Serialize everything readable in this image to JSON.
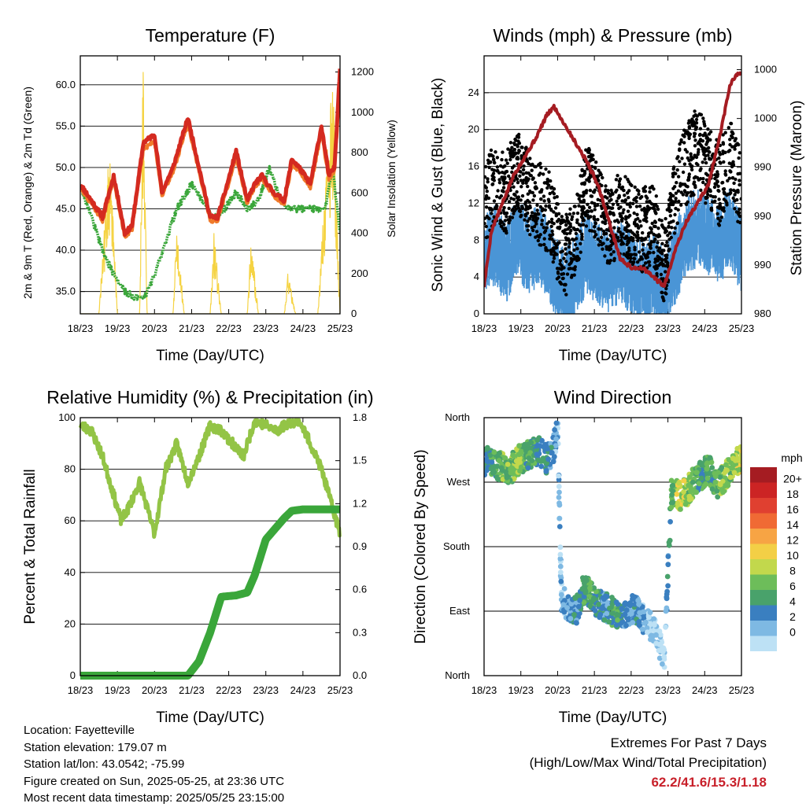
{
  "colors": {
    "temp_2m": "#d42a20",
    "temp_9m": "#f07a2a",
    "dewpoint": "#3aa63a",
    "solar": "#f5d343",
    "wind": "#4a95d6",
    "gust": "#000000",
    "pressure": "#a51c22",
    "rh": "#93c446",
    "precip": "#3aa63a",
    "extremes": "#c8202a"
  },
  "x_ticks": [
    "18/23",
    "19/23",
    "20/23",
    "21/23",
    "22/23",
    "23/23",
    "24/23",
    "25/23"
  ],
  "panels": {
    "temperature": {
      "title": "Temperature (F)",
      "xlabel": "Time (Day/UTC)",
      "ylabel_left": "2m & 9m T (Red, Orange) & 2m Td (Green)",
      "ylabel_right": "Solar Insolation (Yellow)"
    },
    "winds": {
      "title": "Winds (mph) & Pressure (mb)",
      "xlabel": "Time (Day/UTC)",
      "ylabel_left": "Sonic Wind & Gust (Blue, Black)",
      "ylabel_right": "Station Pressure (Maroon)"
    },
    "humidity": {
      "title": "Relative Humidity (%) & Precipitation (in)",
      "xlabel": "Time (Day/UTC)",
      "ylabel_left": "Percent & Total Rainfall"
    },
    "direction": {
      "title": "Wind Direction",
      "xlabel": "Time (Day/UTC)",
      "ylabel_left": "Direction (Colored By Speed)"
    }
  },
  "legend": {
    "unit": "mph",
    "labels": [
      "20+",
      "18",
      "16",
      "14",
      "12",
      "10",
      "8",
      "6",
      "4",
      "2",
      "0"
    ],
    "colors": [
      "#a51c22",
      "#cc2424",
      "#e04030",
      "#f06a34",
      "#f7a444",
      "#f3cf46",
      "#c2d84c",
      "#6dbd5a",
      "#49a26b",
      "#3a7fc0",
      "#7eb9e3",
      "#bde1f5"
    ]
  },
  "info": {
    "location": "Location: Fayetteville",
    "elevation": "Station elevation: 179.07 m",
    "latlon": "Station lat/lon: 43.0542; -75.99",
    "created": "Figure created on Sun, 2025-05-25, at 23:36 UTC",
    "recent": "Most recent data timestamp: 2025/05/25 23:15:00"
  },
  "extremes": {
    "heading": "Extremes For Past 7 Days",
    "subheading": "(High/Low/Max Wind/Total Precipitation)",
    "values": "62.2/41.6/15.3/1.18"
  },
  "chart_data": [
    {
      "type": "line",
      "title": "Temperature (F)",
      "xlabel": "Time (Day/UTC)",
      "ylabel": "2m & 9m T (Red, Orange) & 2m Td (Green)",
      "ylabel_right": "Solar Insolation (Yellow)",
      "x_ticks": [
        "18/23",
        "19/23",
        "20/23",
        "21/23",
        "22/23",
        "23/23",
        "24/23",
        "25/23"
      ],
      "xlim": [
        0,
        7
      ],
      "ylim": [
        32.3,
        63.5
      ],
      "y_ticks": [
        35.0,
        40.0,
        45.0,
        50.0,
        55.0,
        60.0
      ],
      "y2lim": [
        0,
        1280
      ],
      "y2_ticks": [
        0,
        200,
        400,
        600,
        800,
        1000,
        1200
      ],
      "grid": true,
      "series": [
        {
          "name": "2m T",
          "axis": "left",
          "x": [
            0,
            0.3,
            0.6,
            0.9,
            1.2,
            1.4,
            1.7,
            2.0,
            2.2,
            2.5,
            2.9,
            3.2,
            3.5,
            3.7,
            3.9,
            4.2,
            4.5,
            4.7,
            4.9,
            5.2,
            5.5,
            5.7,
            5.9,
            6.2,
            6.5,
            6.7,
            6.85,
            7.0
          ],
          "values": [
            48.0,
            46.0,
            44.0,
            49.0,
            42.0,
            43.0,
            53.0,
            54.0,
            47.0,
            50.0,
            56.0,
            50.0,
            44.0,
            44.0,
            47.0,
            52.0,
            46.0,
            48.0,
            49.0,
            47.0,
            46.0,
            51.0,
            50.0,
            48.0,
            55.0,
            49.0,
            50.0,
            62.0
          ]
        },
        {
          "name": "9m T",
          "axis": "left",
          "x": [
            0,
            0.3,
            0.6,
            0.9,
            1.2,
            1.4,
            1.7,
            2.0,
            2.2,
            2.5,
            2.9,
            3.2,
            3.5,
            3.7,
            3.9,
            4.2,
            4.5,
            4.7,
            4.9,
            5.2,
            5.5,
            5.7,
            5.9,
            6.2,
            6.5,
            6.7,
            6.85,
            7.0
          ],
          "values": [
            47.6,
            45.6,
            43.6,
            48.4,
            41.6,
            42.6,
            52.2,
            53.2,
            46.6,
            49.5,
            55.2,
            49.6,
            43.6,
            43.6,
            46.6,
            51.2,
            45.6,
            47.6,
            48.6,
            46.6,
            45.6,
            50.4,
            49.6,
            47.6,
            54.2,
            48.6,
            49.6,
            60.0
          ]
        },
        {
          "name": "2m Td",
          "axis": "left",
          "x": [
            0,
            0.3,
            0.6,
            0.9,
            1.2,
            1.4,
            1.7,
            2.0,
            2.3,
            2.6,
            3.0,
            3.3,
            3.6,
            3.9,
            4.2,
            4.5,
            4.8,
            5.1,
            5.4,
            5.7,
            6.0,
            6.3,
            6.6,
            6.8,
            7.0
          ],
          "values": [
            48.0,
            44.0,
            40.0,
            37.0,
            35.0,
            34.5,
            34.0,
            37.0,
            41.0,
            45.0,
            48.0,
            46.0,
            44.0,
            45.0,
            47.0,
            45.0,
            46.0,
            50.0,
            46.0,
            45.0,
            45.0,
            45.0,
            45.0,
            50.0,
            42.0
          ]
        },
        {
          "name": "Solar Insolation",
          "axis": "right",
          "x": [
            0,
            0.5,
            0.8,
            1.0,
            1.3,
            1.6,
            1.7,
            1.8,
            2.0,
            2.5,
            2.6,
            2.8,
            3.0,
            3.5,
            3.6,
            3.8,
            4.0,
            4.5,
            4.6,
            4.8,
            5.0,
            5.5,
            5.6,
            5.8,
            6.0,
            6.4,
            6.6,
            6.8,
            7.0
          ],
          "values": [
            0,
            0,
            800,
            0,
            0,
            0,
            1250,
            0,
            0,
            0,
            420,
            0,
            0,
            0,
            380,
            0,
            0,
            0,
            350,
            0,
            0,
            0,
            200,
            0,
            0,
            0,
            600,
            1100,
            0
          ]
        }
      ]
    },
    {
      "type": "line",
      "title": "Winds (mph) & Pressure (mb)",
      "xlabel": "Time (Day/UTC)",
      "ylabel": "Sonic Wind & Gust (Blue, Black)",
      "ylabel_right": "Station Pressure (Maroon)",
      "x_ticks": [
        "18/23",
        "19/23",
        "20/23",
        "21/23",
        "22/23",
        "23/23",
        "24/23",
        "25/23"
      ],
      "xlim": [
        0,
        7
      ],
      "ylim": [
        0,
        28
      ],
      "y_ticks": [
        0,
        4,
        8,
        12,
        16,
        20,
        24
      ],
      "y2_tick_labels": [
        "980",
        "990",
        "990",
        "990",
        "1000",
        "1000"
      ],
      "grid": true,
      "series": [
        {
          "name": "Sonic Wind",
          "axis": "left",
          "x": [
            0,
            0.3,
            0.6,
            0.9,
            1.2,
            1.5,
            1.8,
            2.0,
            2.2,
            2.5,
            2.8,
            3.1,
            3.4,
            3.7,
            4.0,
            4.3,
            4.6,
            4.9,
            5.2,
            5.5,
            5.8,
            6.1,
            6.4,
            6.7,
            7.0
          ],
          "values": [
            7,
            8,
            6,
            9,
            7,
            8,
            6,
            4,
            3,
            5,
            7,
            6,
            5,
            6,
            5,
            4,
            5,
            3,
            6,
            9,
            10,
            9,
            8,
            10,
            7
          ]
        },
        {
          "name": "Gust",
          "axis": "left",
          "x": [
            0,
            0.3,
            0.6,
            0.9,
            1.2,
            1.5,
            1.8,
            2.0,
            2.2,
            2.5,
            2.8,
            3.1,
            3.4,
            3.7,
            4.0,
            4.3,
            4.6,
            4.9,
            5.2,
            5.5,
            5.8,
            6.1,
            6.4,
            6.7,
            7.0
          ],
          "values": [
            12,
            14,
            13,
            16,
            13,
            12,
            11,
            8,
            6,
            9,
            14,
            12,
            9,
            11,
            10,
            9,
            10,
            5,
            13,
            16,
            18,
            16,
            14,
            17,
            13
          ]
        },
        {
          "name": "Station Pressure",
          "axis": "right",
          "x": [
            0,
            0.2,
            0.5,
            0.8,
            1.1,
            1.4,
            1.7,
            1.9,
            2.2,
            2.5,
            2.8,
            3.1,
            3.4,
            3.7,
            4.0,
            4.3,
            4.6,
            4.9,
            5.2,
            5.5,
            5.8,
            6.1,
            6.4,
            6.7,
            6.9,
            7.0
          ],
          "values": [
            3,
            9,
            12,
            15,
            17,
            19,
            21.5,
            22.5,
            20.5,
            18.5,
            16.5,
            14,
            10,
            6,
            5,
            5,
            4,
            3,
            7,
            10,
            12,
            14,
            19,
            25,
            26,
            26
          ]
        }
      ]
    },
    {
      "type": "line",
      "title": "Relative Humidity (%) & Precipitation (in)",
      "xlabel": "Time (Day/UTC)",
      "ylabel": "Percent & Total Rainfall",
      "x_ticks": [
        "18/23",
        "19/23",
        "20/23",
        "21/23",
        "22/23",
        "23/23",
        "24/23",
        "25/23"
      ],
      "xlim": [
        0,
        7
      ],
      "ylim": [
        0,
        100
      ],
      "y_ticks": [
        0,
        20,
        40,
        60,
        80,
        100
      ],
      "y2lim": [
        0,
        1.8
      ],
      "y2_ticks": [
        "0.0",
        "0.3",
        "0.6",
        "0.9",
        "1.2",
        "1.5",
        "1.8"
      ],
      "grid": true,
      "series": [
        {
          "name": "Relative Humidity",
          "axis": "left",
          "x": [
            0,
            0.3,
            0.6,
            0.9,
            1.1,
            1.3,
            1.6,
            1.9,
            2.0,
            2.3,
            2.6,
            2.9,
            3.2,
            3.5,
            3.8,
            4.1,
            4.4,
            4.7,
            5.0,
            5.3,
            5.6,
            5.9,
            6.2,
            6.5,
            6.8,
            7.0
          ],
          "values": [
            97,
            95,
            85,
            70,
            60,
            65,
            75,
            60,
            55,
            80,
            90,
            75,
            85,
            97,
            95,
            90,
            85,
            99,
            97,
            95,
            98,
            99,
            90,
            80,
            65,
            55
          ]
        },
        {
          "name": "Total Rainfall",
          "axis": "right",
          "x": [
            0,
            2.9,
            3.2,
            3.5,
            3.8,
            4.2,
            4.5,
            4.7,
            5.0,
            5.5,
            5.7,
            6.0,
            7.0
          ],
          "values": [
            0,
            0,
            0.1,
            0.3,
            0.55,
            0.56,
            0.58,
            0.7,
            0.95,
            1.1,
            1.15,
            1.16,
            1.16
          ]
        }
      ]
    },
    {
      "type": "scatter",
      "title": "Wind Direction",
      "xlabel": "Time (Day/UTC)",
      "ylabel": "Direction (Colored By Speed)",
      "x_ticks": [
        "18/23",
        "19/23",
        "20/23",
        "21/23",
        "22/23",
        "23/23",
        "24/23",
        "25/23"
      ],
      "xlim": [
        0,
        7
      ],
      "y_ticks": [
        "North",
        "East",
        "South",
        "West",
        "North"
      ],
      "ylim": [
        0,
        360
      ],
      "grid": true,
      "legend": {
        "title": "mph",
        "placement": "right"
      },
      "series": [
        {
          "name": "Direction",
          "x": [
            0.1,
            0.3,
            0.5,
            0.7,
            0.9,
            1.1,
            1.3,
            1.5,
            1.7,
            1.9,
            2.0,
            2.1,
            2.3,
            2.5,
            2.7,
            2.9,
            3.1,
            3.3,
            3.5,
            3.7,
            3.9,
            4.1,
            4.3,
            4.5,
            4.7,
            4.9,
            5.1,
            5.3,
            5.5,
            5.7,
            5.9,
            6.1,
            6.3,
            6.5,
            6.7,
            6.9
          ],
          "values": [
            300,
            295,
            290,
            285,
            300,
            305,
            310,
            315,
            300,
            320,
            340,
            110,
            95,
            90,
            120,
            115,
            100,
            95,
            90,
            85,
            90,
            95,
            80,
            70,
            55,
            20,
            260,
            250,
            255,
            270,
            280,
            290,
            265,
            275,
            285,
            300
          ],
          "speeds": [
            6,
            7,
            9,
            8,
            10,
            8,
            7,
            5,
            6,
            4,
            3,
            3,
            4,
            5,
            7,
            8,
            6,
            5,
            7,
            6,
            4,
            5,
            3,
            2,
            2,
            1,
            8,
            12,
            10,
            9,
            6,
            7,
            8,
            10,
            9,
            11
          ]
        }
      ]
    }
  ]
}
